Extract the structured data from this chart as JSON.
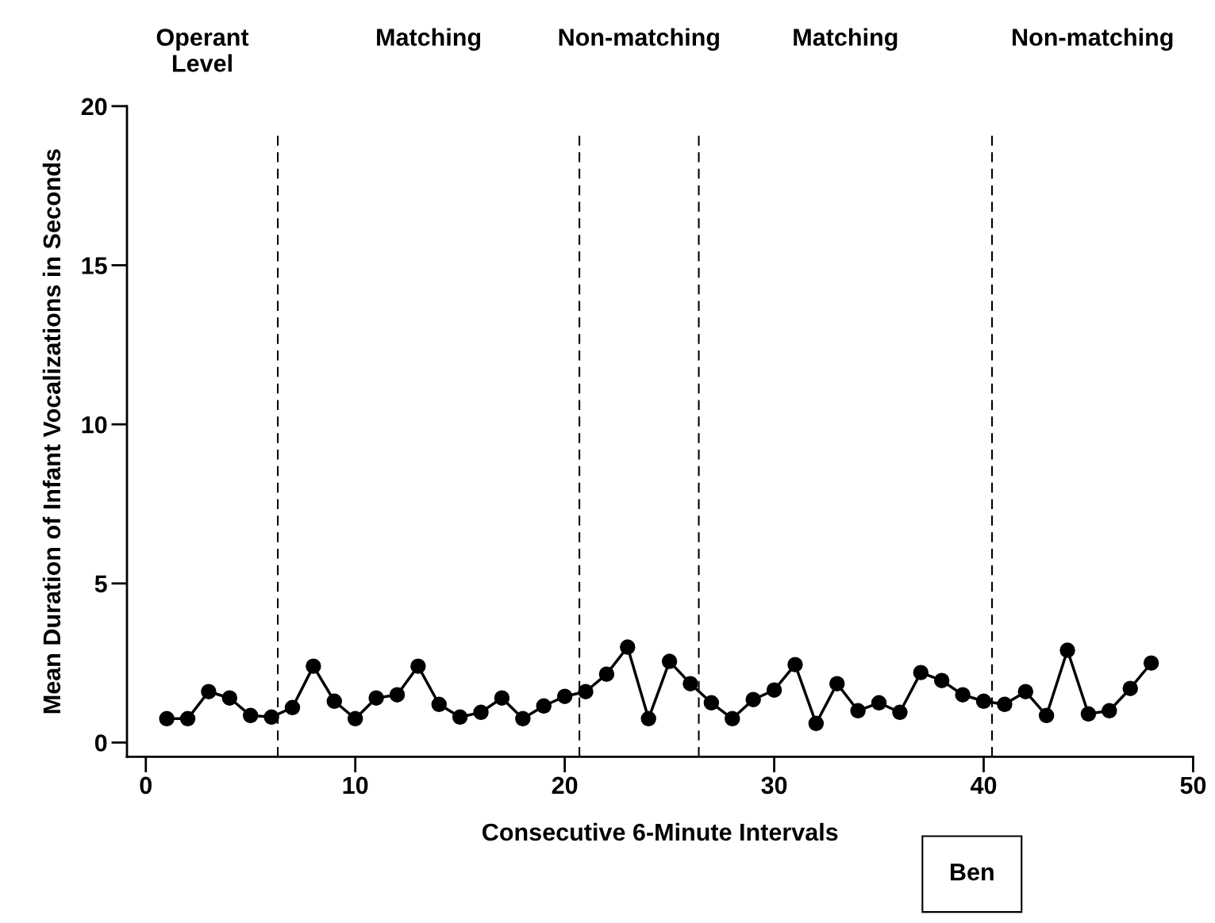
{
  "chart_data": {
    "type": "line",
    "xlabel": "Consecutive 6-Minute Intervals",
    "ylabel": "Mean Duration of Infant Vocalizations in Seconds",
    "x": [
      1,
      2,
      3,
      4,
      5,
      6,
      7,
      8,
      9,
      10,
      11,
      12,
      13,
      14,
      15,
      16,
      17,
      18,
      19,
      20,
      21,
      22,
      23,
      24,
      25,
      26,
      27,
      28,
      29,
      30,
      31,
      32,
      33,
      34,
      35,
      36,
      37,
      38,
      39,
      40,
      41,
      42,
      43,
      44,
      45,
      46,
      47,
      48
    ],
    "series": [
      {
        "color": "#000000",
        "values": [
          0.75,
          0.75,
          1.6,
          1.4,
          0.85,
          0.8,
          1.1,
          2.4,
          1.3,
          0.75,
          1.4,
          1.5,
          2.4,
          1.2,
          0.8,
          0.95,
          1.4,
          0.75,
          1.15,
          1.45,
          1.6,
          2.15,
          3.0,
          0.75,
          2.55,
          1.85,
          1.25,
          0.75,
          1.35,
          1.65,
          2.45,
          0.6,
          1.85,
          1.0,
          1.25,
          0.95,
          2.2,
          1.95,
          1.5,
          1.3,
          1.2,
          1.6,
          0.85,
          2.9,
          0.9,
          1.0,
          1.7,
          2.5
        ]
      }
    ],
    "marker": "circle",
    "line_style": "solid",
    "grid": false,
    "legend": false,
    "xlim": [
      -0.9,
      50
    ],
    "ylim": [
      -0.45,
      20
    ],
    "xticks": [
      0,
      10,
      20,
      30,
      40,
      50
    ],
    "yticks": [
      0,
      5,
      10,
      15,
      20
    ],
    "ref_lines": [
      {
        "axis": "x",
        "value": 6.3,
        "color": "#000000",
        "line_style": "dashed"
      },
      {
        "axis": "x",
        "value": 20.7,
        "color": "#000000",
        "line_style": "dashed"
      },
      {
        "axis": "x",
        "value": 26.4,
        "color": "#000000",
        "line_style": "dashed"
      },
      {
        "axis": "x",
        "value": 40.4,
        "color": "#000000",
        "line_style": "dashed"
      }
    ],
    "annotations": [
      "Operant\nLevel",
      "Matching",
      "Non-matching",
      "Matching",
      "Non-matching",
      "Ben"
    ]
  }
}
